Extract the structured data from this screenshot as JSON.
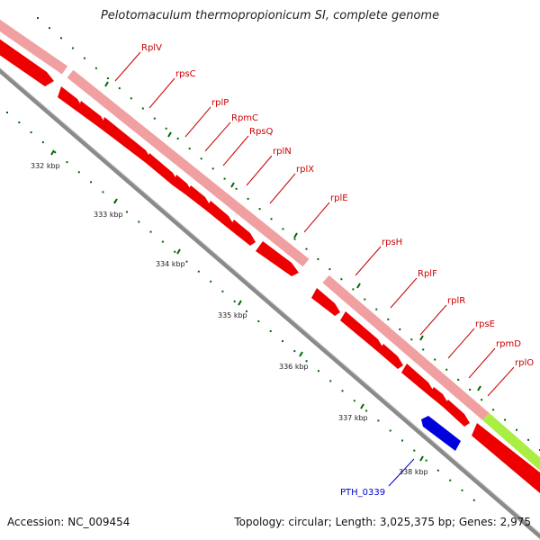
{
  "title": "Pelotomaculum thermopropionicum SI, complete genome",
  "footer": {
    "accession": "Accession: NC_009454",
    "topology": "Topology: circular; Length: 3,025,375 bp; Genes: 2,975"
  },
  "colors": {
    "gene_red": "#ee0000",
    "gene_pink": "#f09898",
    "gene_green": "#aaee44",
    "gene_blue": "#0000dd",
    "backbone": "#888888",
    "dot_green": "#006600",
    "label_red": "#cc0000",
    "label_blue": "#0000cc"
  },
  "ruler": [
    "332 kbp",
    "333 kbp",
    "334 kbp",
    "335 kbp",
    "336 kbp",
    "337 kbp",
    "338 kbp"
  ],
  "forward_genes": [
    "RplV",
    "rpsC",
    "rplP",
    "RpmC",
    "RpsQ",
    "rplN",
    "rplX",
    "rplE",
    "rpsH",
    "RplF",
    "rplR",
    "rpsE",
    "rpmD",
    "rplO"
  ],
  "other_genes": [
    "PTH_0339"
  ]
}
